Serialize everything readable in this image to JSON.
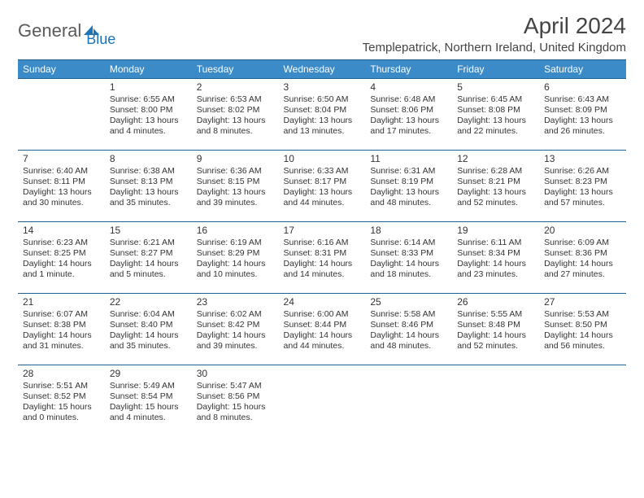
{
  "logo": {
    "text1": "General",
    "text2": "Blue",
    "color_gray": "#5a5a5a",
    "color_blue": "#1f74b5"
  },
  "title": "April 2024",
  "location": "Templepatrick, Northern Ireland, United Kingdom",
  "header_bg": "#3b8bc9",
  "header_text": "#ffffff",
  "border_color": "#1f5f8b",
  "days": [
    "Sunday",
    "Monday",
    "Tuesday",
    "Wednesday",
    "Thursday",
    "Friday",
    "Saturday"
  ],
  "weeks": [
    [
      null,
      {
        "n": "1",
        "sr": "Sunrise: 6:55 AM",
        "ss": "Sunset: 8:00 PM",
        "d1": "Daylight: 13 hours",
        "d2": "and 4 minutes."
      },
      {
        "n": "2",
        "sr": "Sunrise: 6:53 AM",
        "ss": "Sunset: 8:02 PM",
        "d1": "Daylight: 13 hours",
        "d2": "and 8 minutes."
      },
      {
        "n": "3",
        "sr": "Sunrise: 6:50 AM",
        "ss": "Sunset: 8:04 PM",
        "d1": "Daylight: 13 hours",
        "d2": "and 13 minutes."
      },
      {
        "n": "4",
        "sr": "Sunrise: 6:48 AM",
        "ss": "Sunset: 8:06 PM",
        "d1": "Daylight: 13 hours",
        "d2": "and 17 minutes."
      },
      {
        "n": "5",
        "sr": "Sunrise: 6:45 AM",
        "ss": "Sunset: 8:08 PM",
        "d1": "Daylight: 13 hours",
        "d2": "and 22 minutes."
      },
      {
        "n": "6",
        "sr": "Sunrise: 6:43 AM",
        "ss": "Sunset: 8:09 PM",
        "d1": "Daylight: 13 hours",
        "d2": "and 26 minutes."
      }
    ],
    [
      {
        "n": "7",
        "sr": "Sunrise: 6:40 AM",
        "ss": "Sunset: 8:11 PM",
        "d1": "Daylight: 13 hours",
        "d2": "and 30 minutes."
      },
      {
        "n": "8",
        "sr": "Sunrise: 6:38 AM",
        "ss": "Sunset: 8:13 PM",
        "d1": "Daylight: 13 hours",
        "d2": "and 35 minutes."
      },
      {
        "n": "9",
        "sr": "Sunrise: 6:36 AM",
        "ss": "Sunset: 8:15 PM",
        "d1": "Daylight: 13 hours",
        "d2": "and 39 minutes."
      },
      {
        "n": "10",
        "sr": "Sunrise: 6:33 AM",
        "ss": "Sunset: 8:17 PM",
        "d1": "Daylight: 13 hours",
        "d2": "and 44 minutes."
      },
      {
        "n": "11",
        "sr": "Sunrise: 6:31 AM",
        "ss": "Sunset: 8:19 PM",
        "d1": "Daylight: 13 hours",
        "d2": "and 48 minutes."
      },
      {
        "n": "12",
        "sr": "Sunrise: 6:28 AM",
        "ss": "Sunset: 8:21 PM",
        "d1": "Daylight: 13 hours",
        "d2": "and 52 minutes."
      },
      {
        "n": "13",
        "sr": "Sunrise: 6:26 AM",
        "ss": "Sunset: 8:23 PM",
        "d1": "Daylight: 13 hours",
        "d2": "and 57 minutes."
      }
    ],
    [
      {
        "n": "14",
        "sr": "Sunrise: 6:23 AM",
        "ss": "Sunset: 8:25 PM",
        "d1": "Daylight: 14 hours",
        "d2": "and 1 minute."
      },
      {
        "n": "15",
        "sr": "Sunrise: 6:21 AM",
        "ss": "Sunset: 8:27 PM",
        "d1": "Daylight: 14 hours",
        "d2": "and 5 minutes."
      },
      {
        "n": "16",
        "sr": "Sunrise: 6:19 AM",
        "ss": "Sunset: 8:29 PM",
        "d1": "Daylight: 14 hours",
        "d2": "and 10 minutes."
      },
      {
        "n": "17",
        "sr": "Sunrise: 6:16 AM",
        "ss": "Sunset: 8:31 PM",
        "d1": "Daylight: 14 hours",
        "d2": "and 14 minutes."
      },
      {
        "n": "18",
        "sr": "Sunrise: 6:14 AM",
        "ss": "Sunset: 8:33 PM",
        "d1": "Daylight: 14 hours",
        "d2": "and 18 minutes."
      },
      {
        "n": "19",
        "sr": "Sunrise: 6:11 AM",
        "ss": "Sunset: 8:34 PM",
        "d1": "Daylight: 14 hours",
        "d2": "and 23 minutes."
      },
      {
        "n": "20",
        "sr": "Sunrise: 6:09 AM",
        "ss": "Sunset: 8:36 PM",
        "d1": "Daylight: 14 hours",
        "d2": "and 27 minutes."
      }
    ],
    [
      {
        "n": "21",
        "sr": "Sunrise: 6:07 AM",
        "ss": "Sunset: 8:38 PM",
        "d1": "Daylight: 14 hours",
        "d2": "and 31 minutes."
      },
      {
        "n": "22",
        "sr": "Sunrise: 6:04 AM",
        "ss": "Sunset: 8:40 PM",
        "d1": "Daylight: 14 hours",
        "d2": "and 35 minutes."
      },
      {
        "n": "23",
        "sr": "Sunrise: 6:02 AM",
        "ss": "Sunset: 8:42 PM",
        "d1": "Daylight: 14 hours",
        "d2": "and 39 minutes."
      },
      {
        "n": "24",
        "sr": "Sunrise: 6:00 AM",
        "ss": "Sunset: 8:44 PM",
        "d1": "Daylight: 14 hours",
        "d2": "and 44 minutes."
      },
      {
        "n": "25",
        "sr": "Sunrise: 5:58 AM",
        "ss": "Sunset: 8:46 PM",
        "d1": "Daylight: 14 hours",
        "d2": "and 48 minutes."
      },
      {
        "n": "26",
        "sr": "Sunrise: 5:55 AM",
        "ss": "Sunset: 8:48 PM",
        "d1": "Daylight: 14 hours",
        "d2": "and 52 minutes."
      },
      {
        "n": "27",
        "sr": "Sunrise: 5:53 AM",
        "ss": "Sunset: 8:50 PM",
        "d1": "Daylight: 14 hours",
        "d2": "and 56 minutes."
      }
    ],
    [
      {
        "n": "28",
        "sr": "Sunrise: 5:51 AM",
        "ss": "Sunset: 8:52 PM",
        "d1": "Daylight: 15 hours",
        "d2": "and 0 minutes."
      },
      {
        "n": "29",
        "sr": "Sunrise: 5:49 AM",
        "ss": "Sunset: 8:54 PM",
        "d1": "Daylight: 15 hours",
        "d2": "and 4 minutes."
      },
      {
        "n": "30",
        "sr": "Sunrise: 5:47 AM",
        "ss": "Sunset: 8:56 PM",
        "d1": "Daylight: 15 hours",
        "d2": "and 8 minutes."
      },
      null,
      null,
      null,
      null
    ]
  ]
}
